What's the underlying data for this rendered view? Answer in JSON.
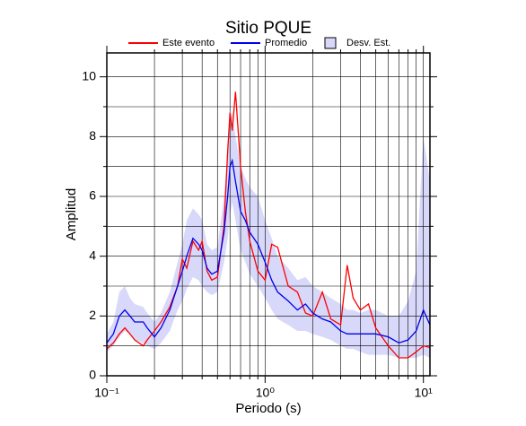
{
  "chart_data": {
    "type": "line",
    "title": "Sitio PQUE",
    "x_label": "Periodo (s)",
    "y_label": "Amplitud",
    "x_log": true,
    "grid": true,
    "xlim": [
      0.1,
      11
    ],
    "ylim": [
      0,
      10.8
    ],
    "xticks": [
      {
        "value": 0.1,
        "label": "10⁻¹"
      },
      {
        "value": 1,
        "label": "10⁰"
      },
      {
        "value": 10,
        "label": "10¹"
      }
    ],
    "x_minor_ticks": [
      0.2,
      0.3,
      0.4,
      0.5,
      0.6,
      0.7,
      0.8,
      0.9,
      2,
      3,
      4,
      5,
      6,
      7,
      8,
      9
    ],
    "yticks": [
      0,
      2,
      4,
      6,
      8,
      10
    ],
    "y_minor_ticks": [
      1,
      3,
      5,
      7,
      9
    ],
    "x": [
      0.1,
      0.11,
      0.12,
      0.13,
      0.14,
      0.15,
      0.17,
      0.18,
      0.2,
      0.22,
      0.25,
      0.28,
      0.3,
      0.32,
      0.35,
      0.38,
      0.4,
      0.43,
      0.46,
      0.5,
      0.55,
      0.58,
      0.6,
      0.62,
      0.65,
      0.7,
      0.75,
      0.8,
      0.9,
      1.0,
      1.1,
      1.2,
      1.4,
      1.6,
      1.8,
      2.0,
      2.3,
      2.6,
      3.0,
      3.3,
      3.6,
      4.0,
      4.5,
      5.0,
      6.0,
      7.0,
      8.0,
      9.0,
      10,
      11
    ],
    "series": [
      {
        "name": "Este evento",
        "color": "#ff0000",
        "values": [
          0.9,
          1.1,
          1.4,
          1.6,
          1.4,
          1.2,
          1.0,
          1.2,
          1.5,
          1.8,
          2.3,
          3.0,
          3.9,
          3.6,
          4.5,
          4.2,
          4.5,
          3.5,
          3.2,
          3.3,
          5.0,
          7.5,
          8.8,
          8.2,
          9.5,
          7.0,
          5.5,
          4.5,
          3.5,
          3.2,
          4.4,
          4.3,
          3.0,
          2.8,
          2.1,
          2.0,
          2.8,
          1.9,
          1.7,
          3.7,
          2.6,
          2.2,
          2.4,
          1.6,
          1.0,
          0.6,
          0.6,
          0.8,
          1.0,
          0.95
        ]
      },
      {
        "name": "Promedio",
        "color": "#0000ee",
        "values": [
          1.1,
          1.4,
          2.0,
          2.2,
          2.0,
          1.8,
          1.8,
          1.6,
          1.3,
          1.6,
          2.2,
          3.0,
          3.5,
          4.0,
          4.6,
          4.4,
          4.2,
          3.6,
          3.4,
          3.5,
          4.8,
          6.0,
          7.0,
          7.2,
          6.5,
          5.5,
          5.2,
          4.8,
          4.4,
          3.8,
          3.2,
          2.8,
          2.5,
          2.2,
          2.4,
          2.1,
          1.9,
          1.8,
          1.5,
          1.4,
          1.4,
          1.4,
          1.4,
          1.4,
          1.3,
          1.1,
          1.2,
          1.5,
          2.2,
          1.7
        ]
      }
    ],
    "band": {
      "name": "Desv. Est.",
      "color": "#d8d8fa",
      "lower": [
        0.8,
        1.0,
        1.3,
        1.5,
        1.4,
        1.2,
        1.1,
        1.0,
        0.9,
        1.1,
        1.5,
        2.2,
        2.5,
        2.9,
        3.3,
        3.2,
        3.0,
        2.8,
        2.7,
        2.8,
        3.8,
        4.6,
        5.4,
        5.8,
        5.2,
        4.2,
        3.8,
        3.4,
        3.0,
        2.6,
        2.2,
        1.9,
        1.7,
        1.5,
        1.5,
        1.4,
        1.3,
        1.2,
        1.0,
        0.9,
        0.9,
        0.8,
        0.7,
        0.7,
        0.7,
        0.6,
        0.6,
        0.6,
        0.7,
        0.6
      ],
      "upper": [
        1.4,
        1.8,
        2.8,
        3.0,
        2.6,
        2.4,
        2.3,
        2.1,
        1.8,
        2.1,
        2.8,
        3.8,
        4.4,
        5.2,
        5.6,
        5.4,
        5.2,
        4.4,
        4.2,
        4.3,
        6.0,
        7.5,
        8.6,
        8.8,
        8.0,
        7.0,
        6.6,
        6.3,
        6.0,
        5.2,
        4.6,
        4.0,
        3.6,
        3.2,
        3.3,
        3.0,
        2.8,
        2.6,
        2.4,
        2.2,
        2.2,
        2.1,
        2.2,
        2.2,
        2.0,
        2.0,
        2.5,
        3.5,
        8.0,
        6.5
      ]
    }
  }
}
